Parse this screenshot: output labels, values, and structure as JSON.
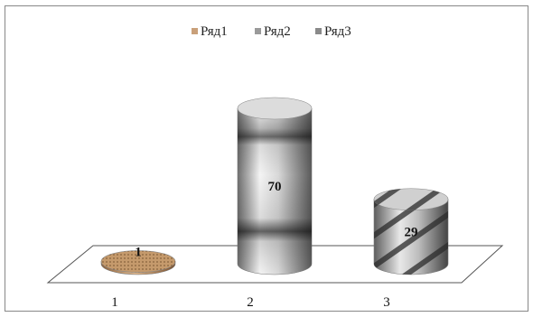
{
  "chart_data": {
    "type": "bar",
    "style": "3d-cylinder",
    "categories": [
      "1",
      "2",
      "3"
    ],
    "series": [
      {
        "name": "Ряд1",
        "values": [
          1,
          null,
          null
        ],
        "color": "#b98a5e"
      },
      {
        "name": "Ряд2",
        "values": [
          null,
          70,
          null
        ],
        "color": "#9a9a9a"
      },
      {
        "name": "Ряд3",
        "values": [
          null,
          null,
          29
        ],
        "color": "#8a8a8a"
      }
    ],
    "data_labels": [
      "1",
      "70",
      "29"
    ],
    "legend_position": "top",
    "grid": false
  }
}
